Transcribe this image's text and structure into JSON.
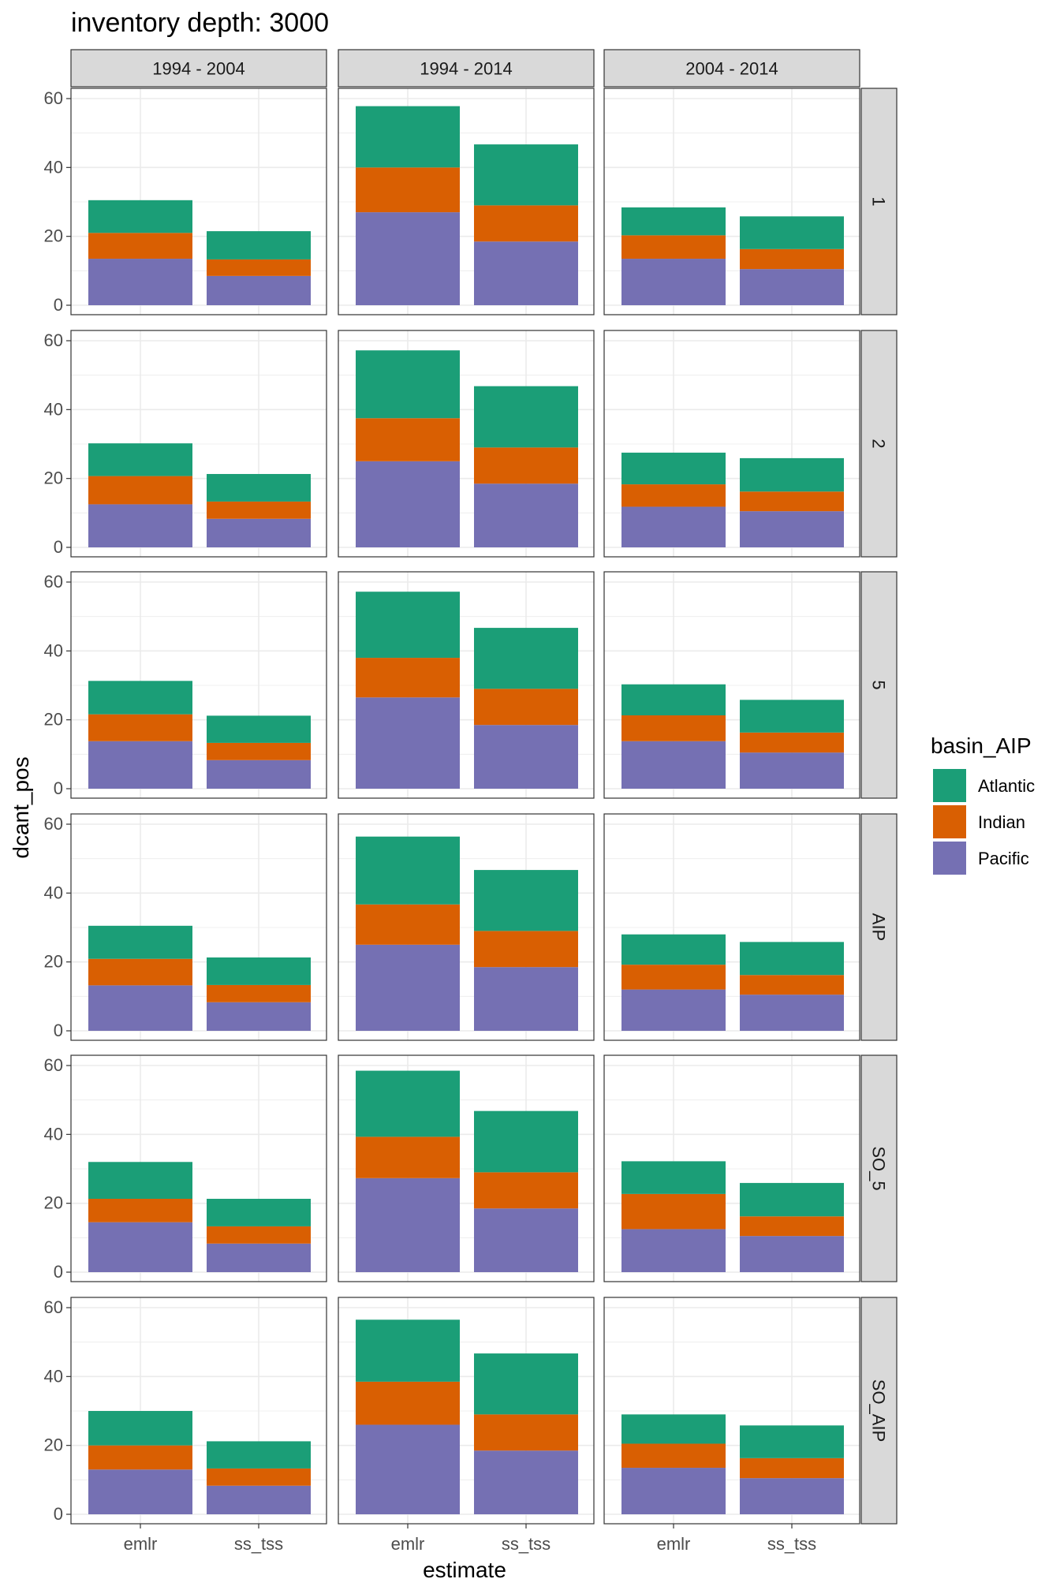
{
  "chart_data": {
    "type": "bar",
    "title": "inventory depth: 3000",
    "xlabel": "estimate",
    "ylabel": "dcant_pos",
    "categories": [
      "emlr",
      "ss_tss"
    ],
    "ylim": [
      0,
      60
    ],
    "yticks": [
      0,
      20,
      40,
      60
    ],
    "grid": true,
    "col_facets": [
      "1994 - 2004",
      "1994 - 2014",
      "2004 - 2014"
    ],
    "row_facets": [
      "1",
      "2",
      "5",
      "AIP",
      "SO_5",
      "SO_AIP"
    ],
    "legend": {
      "title": "basin_AIP",
      "position": "right",
      "entries": [
        {
          "name": "Atlantic",
          "color": "#1B9E77"
        },
        {
          "name": "Indian",
          "color": "#D95F02"
        },
        {
          "name": "Pacific",
          "color": "#7570B3"
        }
      ]
    },
    "stack_order": [
      "Pacific",
      "Indian",
      "Atlantic"
    ],
    "panels": [
      {
        "row": "1",
        "col": "1994 - 2004",
        "bars": [
          {
            "category": "emlr",
            "Pacific": 13.5,
            "Indian": 7.5,
            "Atlantic": 9.5
          },
          {
            "category": "ss_tss",
            "Pacific": 8.5,
            "Indian": 4.8,
            "Atlantic": 8.2
          }
        ]
      },
      {
        "row": "1",
        "col": "1994 - 2014",
        "bars": [
          {
            "category": "emlr",
            "Pacific": 27.0,
            "Indian": 13.0,
            "Atlantic": 17.8
          },
          {
            "category": "ss_tss",
            "Pacific": 18.5,
            "Indian": 10.5,
            "Atlantic": 17.7
          }
        ]
      },
      {
        "row": "1",
        "col": "2004 - 2014",
        "bars": [
          {
            "category": "emlr",
            "Pacific": 13.5,
            "Indian": 6.8,
            "Atlantic": 8.1
          },
          {
            "category": "ss_tss",
            "Pacific": 10.5,
            "Indian": 5.8,
            "Atlantic": 9.5
          }
        ]
      },
      {
        "row": "2",
        "col": "1994 - 2004",
        "bars": [
          {
            "category": "emlr",
            "Pacific": 12.5,
            "Indian": 8.2,
            "Atlantic": 9.5
          },
          {
            "category": "ss_tss",
            "Pacific": 8.3,
            "Indian": 5.0,
            "Atlantic": 8.0
          }
        ]
      },
      {
        "row": "2",
        "col": "1994 - 2014",
        "bars": [
          {
            "category": "emlr",
            "Pacific": 25.0,
            "Indian": 12.5,
            "Atlantic": 19.7
          },
          {
            "category": "ss_tss",
            "Pacific": 18.5,
            "Indian": 10.5,
            "Atlantic": 17.8
          }
        ]
      },
      {
        "row": "2",
        "col": "2004 - 2014",
        "bars": [
          {
            "category": "emlr",
            "Pacific": 11.8,
            "Indian": 6.5,
            "Atlantic": 9.2
          },
          {
            "category": "ss_tss",
            "Pacific": 10.5,
            "Indian": 5.7,
            "Atlantic": 9.7
          }
        ]
      },
      {
        "row": "5",
        "col": "1994 - 2004",
        "bars": [
          {
            "category": "emlr",
            "Pacific": 13.8,
            "Indian": 7.8,
            "Atlantic": 9.7
          },
          {
            "category": "ss_tss",
            "Pacific": 8.3,
            "Indian": 5.0,
            "Atlantic": 7.9
          }
        ]
      },
      {
        "row": "5",
        "col": "1994 - 2014",
        "bars": [
          {
            "category": "emlr",
            "Pacific": 26.5,
            "Indian": 11.5,
            "Atlantic": 19.2
          },
          {
            "category": "ss_tss",
            "Pacific": 18.5,
            "Indian": 10.5,
            "Atlantic": 17.7
          }
        ]
      },
      {
        "row": "5",
        "col": "2004 - 2014",
        "bars": [
          {
            "category": "emlr",
            "Pacific": 13.8,
            "Indian": 7.5,
            "Atlantic": 9.0
          },
          {
            "category": "ss_tss",
            "Pacific": 10.5,
            "Indian": 5.8,
            "Atlantic": 9.5
          }
        ]
      },
      {
        "row": "AIP",
        "col": "1994 - 2004",
        "bars": [
          {
            "category": "emlr",
            "Pacific": 13.2,
            "Indian": 7.7,
            "Atlantic": 9.6
          },
          {
            "category": "ss_tss",
            "Pacific": 8.3,
            "Indian": 5.0,
            "Atlantic": 8.0
          }
        ]
      },
      {
        "row": "AIP",
        "col": "1994 - 2014",
        "bars": [
          {
            "category": "emlr",
            "Pacific": 25.0,
            "Indian": 11.7,
            "Atlantic": 19.7
          },
          {
            "category": "ss_tss",
            "Pacific": 18.5,
            "Indian": 10.5,
            "Atlantic": 17.7
          }
        ]
      },
      {
        "row": "AIP",
        "col": "2004 - 2014",
        "bars": [
          {
            "category": "emlr",
            "Pacific": 12.0,
            "Indian": 7.2,
            "Atlantic": 8.8
          },
          {
            "category": "ss_tss",
            "Pacific": 10.5,
            "Indian": 5.7,
            "Atlantic": 9.6
          }
        ]
      },
      {
        "row": "SO_5",
        "col": "1994 - 2004",
        "bars": [
          {
            "category": "emlr",
            "Pacific": 14.5,
            "Indian": 6.8,
            "Atlantic": 10.7
          },
          {
            "category": "ss_tss",
            "Pacific": 8.3,
            "Indian": 5.0,
            "Atlantic": 8.0
          }
        ]
      },
      {
        "row": "SO_5",
        "col": "1994 - 2014",
        "bars": [
          {
            "category": "emlr",
            "Pacific": 27.3,
            "Indian": 12.0,
            "Atlantic": 19.2
          },
          {
            "category": "ss_tss",
            "Pacific": 18.5,
            "Indian": 10.5,
            "Atlantic": 17.8
          }
        ]
      },
      {
        "row": "SO_5",
        "col": "2004 - 2014",
        "bars": [
          {
            "category": "emlr",
            "Pacific": 12.5,
            "Indian": 10.2,
            "Atlantic": 9.5
          },
          {
            "category": "ss_tss",
            "Pacific": 10.5,
            "Indian": 5.7,
            "Atlantic": 9.7
          }
        ]
      },
      {
        "row": "SO_AIP",
        "col": "1994 - 2004",
        "bars": [
          {
            "category": "emlr",
            "Pacific": 13.0,
            "Indian": 7.0,
            "Atlantic": 10.0
          },
          {
            "category": "ss_tss",
            "Pacific": 8.3,
            "Indian": 5.0,
            "Atlantic": 7.9
          }
        ]
      },
      {
        "row": "SO_AIP",
        "col": "1994 - 2014",
        "bars": [
          {
            "category": "emlr",
            "Pacific": 26.0,
            "Indian": 12.5,
            "Atlantic": 18.0
          },
          {
            "category": "ss_tss",
            "Pacific": 18.5,
            "Indian": 10.5,
            "Atlantic": 17.7
          }
        ]
      },
      {
        "row": "SO_AIP",
        "col": "2004 - 2014",
        "bars": [
          {
            "category": "emlr",
            "Pacific": 13.5,
            "Indian": 7.0,
            "Atlantic": 8.5
          },
          {
            "category": "ss_tss",
            "Pacific": 10.5,
            "Indian": 5.8,
            "Atlantic": 9.5
          }
        ]
      }
    ]
  }
}
